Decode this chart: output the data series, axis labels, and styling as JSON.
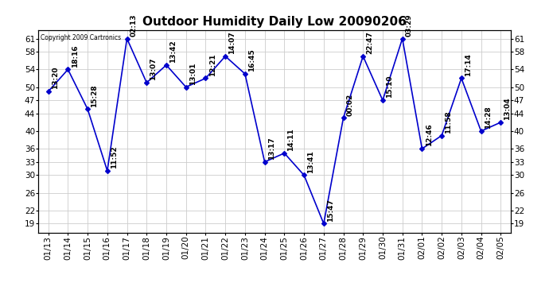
{
  "title": "Outdoor Humidity Daily Low 20090206",
  "copyright": "Copyright 2009 Cartronics",
  "x_labels": [
    "01/13",
    "01/14",
    "01/15",
    "01/16",
    "01/17",
    "01/18",
    "01/19",
    "01/20",
    "01/21",
    "01/22",
    "01/23",
    "01/24",
    "01/25",
    "01/26",
    "01/27",
    "01/28",
    "01/29",
    "01/30",
    "01/31",
    "02/01",
    "02/02",
    "02/03",
    "02/04",
    "02/05"
  ],
  "y_values": [
    49,
    54,
    45,
    31,
    61,
    51,
    55,
    50,
    52,
    57,
    53,
    33,
    35,
    30,
    19,
    43,
    57,
    47,
    61,
    36,
    39,
    52,
    40,
    42
  ],
  "time_labels": [
    "13:20",
    "18:16",
    "15:28",
    "11:52",
    "02:13",
    "13:07",
    "13:42",
    "13:01",
    "12:21",
    "14:07",
    "16:45",
    "13:17",
    "14:11",
    "13:41",
    "15:47",
    "00:02",
    "22:47",
    "15:10",
    "03:29",
    "12:46",
    "11:58",
    "17:14",
    "14:28",
    "13:04"
  ],
  "ylim": [
    17,
    63
  ],
  "yticks": [
    19,
    22,
    26,
    30,
    33,
    36,
    40,
    44,
    47,
    50,
    54,
    58,
    61
  ],
  "line_color": "#0000cc",
  "marker_color": "#0000cc",
  "grid_color": "#cccccc",
  "bg_color": "#ffffff",
  "title_fontsize": 11,
  "label_fontsize": 6.5,
  "tick_fontsize": 7.5
}
